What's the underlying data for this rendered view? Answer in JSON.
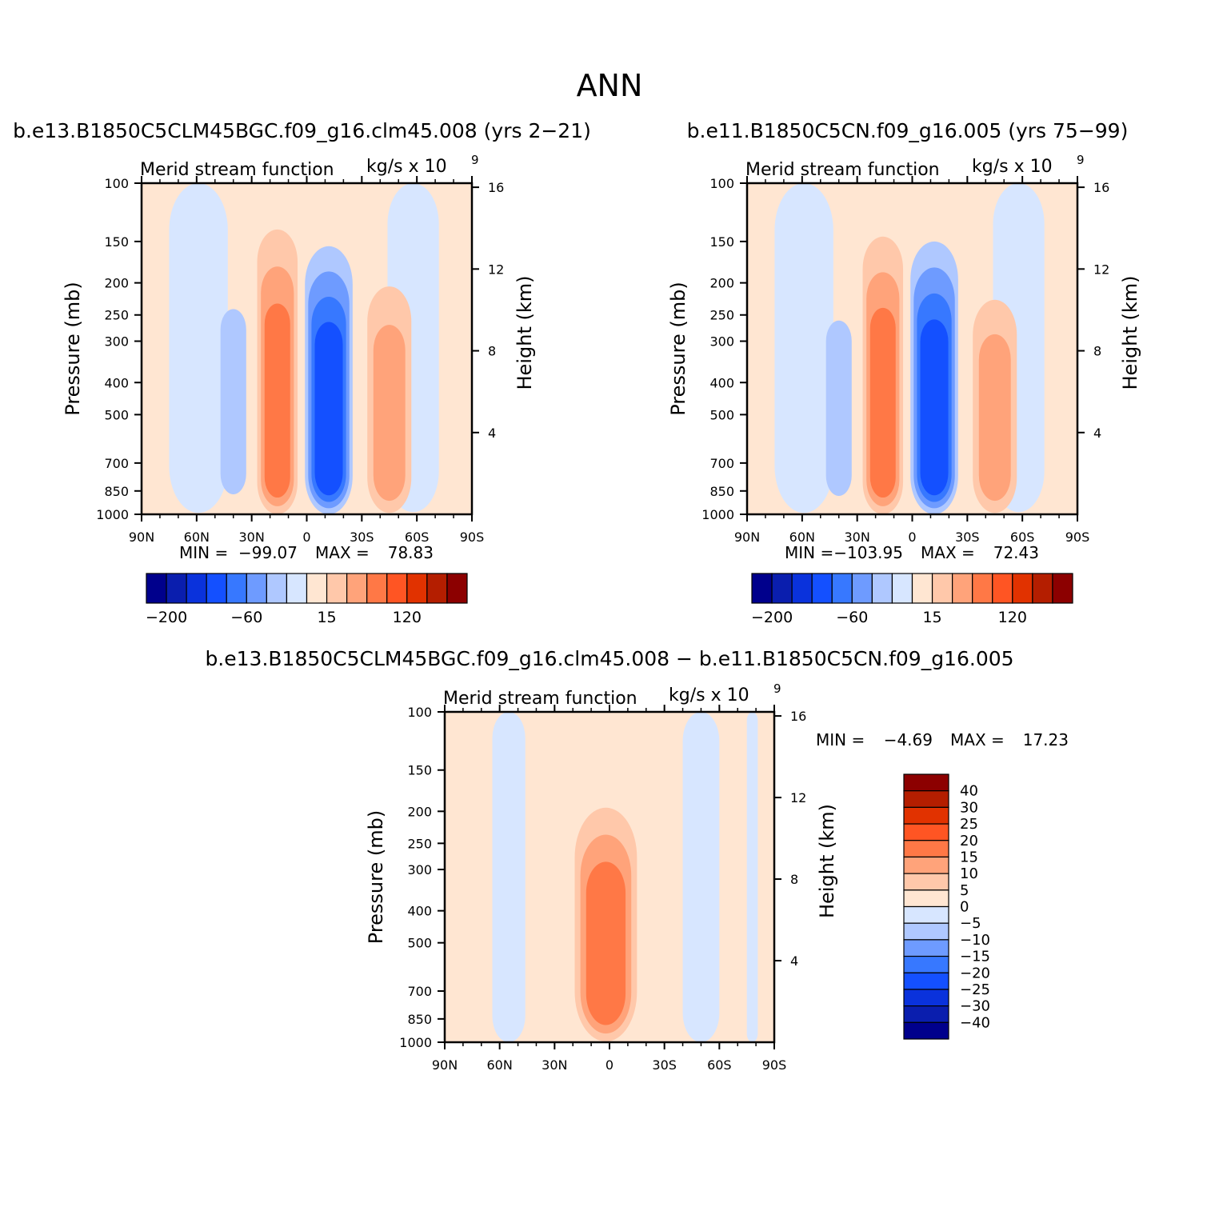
{
  "figure": {
    "title": "ANN",
    "diff_title": "b.e13.B1850C5CLM45BGC.f09_g16.clm45.008 − b.e11.B1850C5CN.f09_g16.005"
  },
  "colors": {
    "levels_15": [
      "#00008c",
      "#0a1eae",
      "#0a32dc",
      "#1450ff",
      "#3778ff",
      "#6e9bff",
      "#afc8ff",
      "#d7e6ff",
      "#ffe6d2",
      "#ffc8aa",
      "#ffa37a",
      "#ff7846",
      "#ff5523",
      "#e13200",
      "#b41e00",
      "#8c0000"
    ]
  },
  "chart_data": [
    {
      "type": "heatmap",
      "id": "left",
      "case_title": "b.e13.B1850C5CLM45BGC.f09_g16.clm45.008 (yrs 2−21)",
      "variable": "Merid stream function",
      "units": "kg/s x 10",
      "units_exp": "9",
      "ylabel": "Pressure (mb)",
      "ylabel_right": "Height (km)",
      "xticks": [
        "90N",
        "60N",
        "30N",
        "0",
        "30S",
        "60S",
        "90S"
      ],
      "yticks": [
        "100",
        "150",
        "200",
        "250",
        "300",
        "400",
        "500",
        "700",
        "850",
        "1000"
      ],
      "yticks_right": [
        "16",
        "12",
        "8",
        "4"
      ],
      "min_label": "MIN =",
      "min": "−99.07",
      "max_label": "MAX =",
      "max": "78.83",
      "colorbar": {
        "orientation": "horizontal",
        "labels": [
          "−200",
          "−60",
          "15",
          "120"
        ]
      },
      "cells": {
        "extrema": {
          "north_hadley_max": 78.83,
          "south_hadley_min": -99.07
        }
      }
    },
    {
      "type": "heatmap",
      "id": "right",
      "case_title": "b.e11.B1850C5CN.f09_g16.005 (yrs 75−99)",
      "variable": "Merid stream function",
      "units": "kg/s x 10",
      "units_exp": "9",
      "ylabel": "Pressure (mb)",
      "ylabel_right": "Height (km)",
      "xticks": [
        "90N",
        "60N",
        "30N",
        "0",
        "30S",
        "60S",
        "90S"
      ],
      "yticks": [
        "100",
        "150",
        "200",
        "250",
        "300",
        "400",
        "500",
        "700",
        "850",
        "1000"
      ],
      "yticks_right": [
        "16",
        "12",
        "8",
        "4"
      ],
      "min_label": "MIN =",
      "min": "−103.95",
      "max_label": "MAX =",
      "max": "72.43",
      "colorbar": {
        "orientation": "horizontal",
        "labels": [
          "−200",
          "−60",
          "15",
          "120"
        ]
      },
      "cells": {
        "extrema": {
          "north_hadley_max": 72.43,
          "south_hadley_min": -103.95
        }
      }
    },
    {
      "type": "heatmap",
      "id": "diff",
      "variable": "Merid stream function",
      "units": "kg/s x 10",
      "units_exp": "9",
      "ylabel": "Pressure (mb)",
      "ylabel_right": "Height (km)",
      "xticks": [
        "90N",
        "60N",
        "30N",
        "0",
        "30S",
        "60S",
        "90S"
      ],
      "yticks": [
        "100",
        "150",
        "200",
        "250",
        "300",
        "400",
        "500",
        "700",
        "850",
        "1000"
      ],
      "yticks_right": [
        "16",
        "12",
        "8",
        "4"
      ],
      "min_label": "MIN =",
      "min": "−4.69",
      "max_label": "MAX =",
      "max": "17.23",
      "colorbar": {
        "orientation": "vertical",
        "labels": [
          "40",
          "30",
          "25",
          "20",
          "15",
          "10",
          "5",
          "0",
          "−5",
          "−10",
          "−15",
          "−20",
          "−25",
          "−30",
          "−40"
        ]
      }
    }
  ]
}
